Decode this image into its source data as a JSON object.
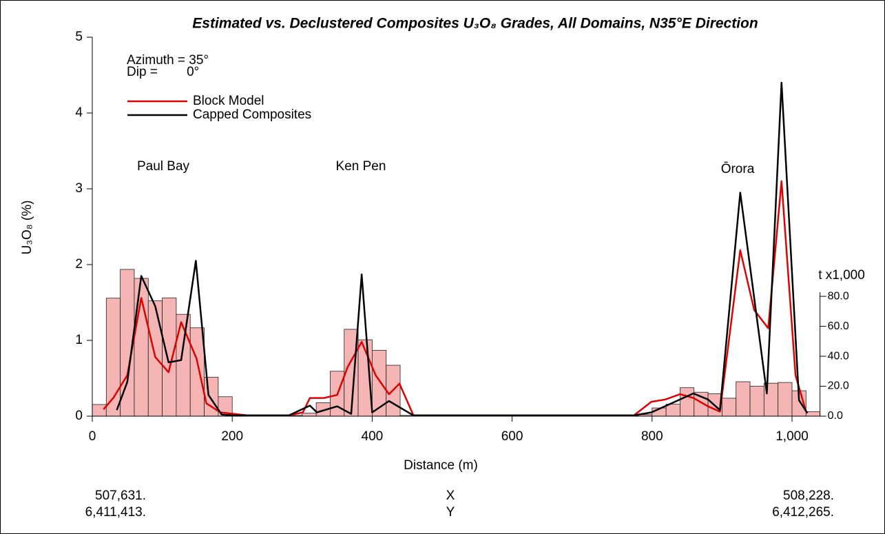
{
  "chart_data": {
    "type": "line",
    "title": "Estimated vs. Declustered Composites U₃O₈ Grades, All Domains, N35°E Direction",
    "xlabel": "Distance (m)",
    "ylabel": "U₃O₈ (%)",
    "y2label": "t x1,000",
    "xlim": [
      0,
      1040
    ],
    "xticks": [
      0,
      200,
      400,
      600,
      800,
      {
        "value": 1000,
        "label": "1,000"
      }
    ],
    "ylim": [
      0,
      5
    ],
    "yticks": [
      0,
      1,
      2,
      3,
      4,
      5
    ],
    "y2lim": [
      0,
      253
    ],
    "y2ticks": [
      {
        "value": 0,
        "label": "0.0"
      },
      {
        "value": 20,
        "label": "20.0"
      },
      {
        "value": 40,
        "label": "40.0"
      },
      {
        "value": 60,
        "label": "60.0"
      },
      {
        "value": 80,
        "label": "80.0"
      }
    ],
    "histogram": {
      "axis": "y2",
      "color": "#f5b5b5",
      "bins": [
        0,
        20,
        40,
        60,
        80,
        100,
        120,
        140,
        160,
        180,
        200,
        220,
        240,
        260,
        280,
        300,
        320,
        340,
        360,
        380,
        400,
        420,
        440,
        460,
        480,
        500,
        520,
        540,
        560,
        580,
        600,
        620,
        640,
        660,
        680,
        700,
        720,
        740,
        760,
        780,
        800,
        820,
        840,
        860,
        880,
        900,
        920,
        940,
        960,
        980,
        1000,
        1020,
        1040
      ],
      "counts": [
        7.8,
        78.8,
        98,
        92,
        77,
        79,
        68,
        59,
        26,
        13,
        0.5,
        0.5,
        0.5,
        0.5,
        0.5,
        2,
        9,
        30,
        58,
        51,
        44,
        34,
        0.5,
        0.5,
        0.5,
        0.5,
        0.5,
        0.5,
        0.5,
        0.5,
        0.5,
        0.5,
        0.5,
        0.5,
        0.5,
        0.5,
        0.5,
        0.5,
        0.5,
        1,
        5.5,
        8,
        19,
        16,
        15,
        12,
        23,
        20,
        22,
        22.5,
        17,
        3
      ]
    },
    "series": [
      {
        "name": "Block Model",
        "color": "#e00000",
        "x": [
          16,
          30,
          50,
          70,
          90,
          109,
          127,
          149,
          163,
          183,
          203,
          222,
          242,
          262,
          281,
          301,
          311,
          331,
          350,
          365,
          385,
          405,
          424,
          439,
          459,
          557,
          656,
          774,
          799,
          819,
          840,
          859,
          880,
          897,
          926,
          946,
          966,
          985,
          1005,
          1020
        ],
        "values": [
          0.09,
          0.24,
          0.54,
          1.56,
          0.78,
          0.58,
          1.24,
          0.76,
          0.17,
          0.05,
          0.03,
          0.01,
          0.01,
          0.01,
          0.01,
          0.05,
          0.24,
          0.24,
          0.28,
          0.65,
          0.98,
          0.54,
          0.29,
          0.43,
          0.01,
          0.01,
          0.01,
          0.01,
          0.19,
          0.22,
          0.29,
          0.24,
          0.13,
          0.06,
          2.19,
          1.4,
          1.16,
          3.1,
          0.54,
          0.06
        ]
      },
      {
        "name": "Capped Composites",
        "color": "#000000",
        "x": [
          35,
          50,
          70,
          90,
          109,
          127,
          148,
          166,
          185,
          203,
          281,
          311,
          321,
          350,
          370,
          385,
          400,
          424,
          459,
          774,
          799,
          859,
          880,
          897,
          926,
          964,
          985,
          1010,
          1022
        ],
        "values": [
          0.08,
          0.45,
          1.85,
          1.45,
          0.71,
          0.74,
          2.05,
          0.28,
          0.02,
          0.01,
          0.01,
          0.14,
          0.05,
          0.13,
          0.03,
          1.87,
          0.05,
          0.2,
          0.01,
          0.01,
          0.05,
          0.3,
          0.22,
          0.08,
          2.95,
          0.3,
          4.4,
          0.21,
          0.04
        ]
      }
    ],
    "legend": "upper left",
    "annotations": [
      "Azimuth = 35°",
      "Dip =        0°",
      "Paul Bay",
      "Ken Pen",
      "Ōrora"
    ],
    "footer": {
      "left": [
        "507,631.",
        "6,411,413."
      ],
      "center": [
        "X",
        "Y"
      ],
      "right": [
        "508,228.",
        "6,412,265."
      ]
    }
  }
}
